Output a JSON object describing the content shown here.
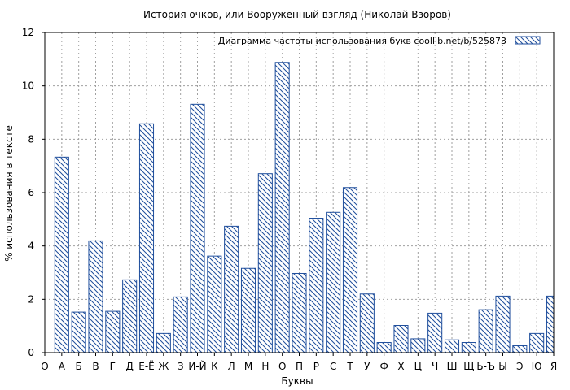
{
  "chart_data": {
    "type": "bar",
    "title": "История очков, или Вооруженный взгляд (Николай Взоров)",
    "xlabel": "Буквы",
    "ylabel": "% использования в тексте",
    "ylim": [
      0,
      12
    ],
    "yticks": [
      0,
      2,
      4,
      6,
      8,
      10,
      12
    ],
    "grid": true,
    "legend_position": "top-right",
    "categories": [
      "О",
      "А",
      "Б",
      "В",
      "Г",
      "Д",
      "Е-Ё",
      "Ж",
      "З",
      "И-Й",
      "К",
      "Л",
      "М",
      "Н",
      "О",
      "П",
      "Р",
      "С",
      "Т",
      "У",
      "Ф",
      "Х",
      "Ц",
      "Ч",
      "Ш",
      "Щ",
      "Ь-Ъ",
      "Ы",
      "Э",
      "Ю",
      "Я"
    ],
    "series": [
      {
        "name": "Диаграмма частоты использования букв  coollib.net/b/525873",
        "values": [
          null,
          7.33,
          1.52,
          4.19,
          1.55,
          2.73,
          8.58,
          0.72,
          2.09,
          9.31,
          3.62,
          4.74,
          3.16,
          6.71,
          10.88,
          2.97,
          5.04,
          5.26,
          6.19,
          2.2,
          0.38,
          1.02,
          0.52,
          1.48,
          0.48,
          0.38,
          1.61,
          2.12,
          0.26,
          0.72,
          2.12
        ]
      }
    ],
    "colors": {
      "bar_stroke": "#1f4e9c",
      "hatch": "#1f4e9c",
      "grid": "#a0a0a0"
    }
  }
}
